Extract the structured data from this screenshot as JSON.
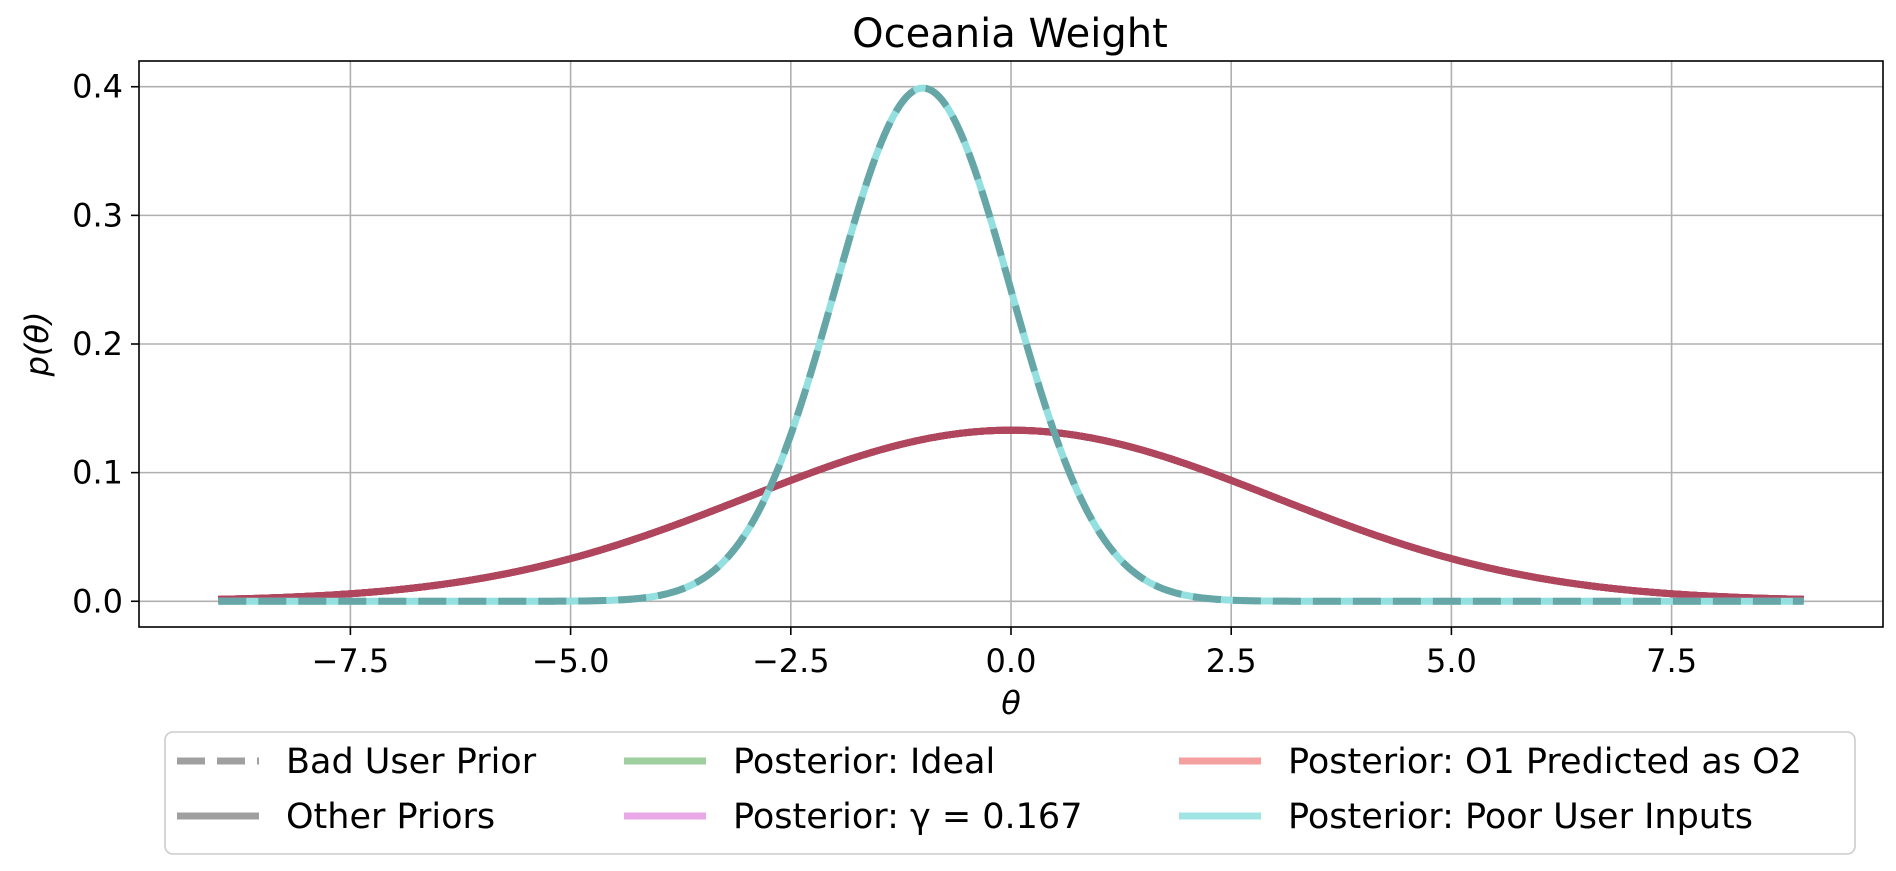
{
  "chart_data": {
    "type": "line",
    "title": "Oceania Weight",
    "xlabel": "θ",
    "ylabel": "p(θ)",
    "xlim": [
      -9.9,
      9.9
    ],
    "ylim": [
      -0.02,
      0.42
    ],
    "grid": true,
    "x_ticks": [
      -7.5,
      -5.0,
      -2.5,
      0.0,
      2.5,
      5.0,
      7.5
    ],
    "x_tick_labels": [
      "−7.5",
      "−5.0",
      "−2.5",
      "0.0",
      "2.5",
      "5.0",
      "7.5"
    ],
    "y_ticks": [
      0.0,
      0.1,
      0.2,
      0.3,
      0.4
    ],
    "y_tick_labels": [
      "0.0",
      "0.1",
      "0.2",
      "0.3",
      "0.4"
    ],
    "x_range": [
      -9,
      9
    ],
    "series": [
      {
        "name": "Bad User Prior",
        "distribution": "normal",
        "mean": -1.0,
        "std": 1.0,
        "color": "#808080",
        "style": "dashed"
      },
      {
        "name": "Other Priors",
        "distribution": "normal",
        "mean": 0.0,
        "std": 3.0,
        "color": "#808080",
        "style": "solid"
      },
      {
        "name": "Posterior: Ideal",
        "distribution": "normal",
        "mean": 0.0,
        "std": 3.0,
        "color": "#7fbf7f",
        "style": "solid"
      },
      {
        "name": "Posterior: γ = 0.167",
        "distribution": "normal",
        "mean": 0.0,
        "std": 3.0,
        "color": "#df7fdf",
        "style": "solid"
      },
      {
        "name": "Posterior: O1 Predicted as O2",
        "distribution": "normal",
        "mean": 0.0,
        "std": 3.0,
        "color": "#f08080",
        "style": "solid"
      },
      {
        "name": "Posterior: Poor User Inputs",
        "distribution": "normal",
        "mean": -1.0,
        "std": 1.0,
        "color": "#80dada",
        "style": "solid"
      }
    ],
    "legend": {
      "placement": "below",
      "columns": 3,
      "entries": [
        {
          "label": "Bad User Prior",
          "color": "#a0a0a0",
          "style": "dashed"
        },
        {
          "label": "Other Priors",
          "color": "#a0a0a0",
          "style": "solid"
        },
        {
          "label": "Posterior: Ideal",
          "color": "#9fcf9f",
          "style": "solid"
        },
        {
          "label": "Posterior: γ = 0.167",
          "color": "#e8a8e8",
          "style": "solid"
        },
        {
          "label": "Posterior: O1 Predicted as O2",
          "color": "#f5a0a0",
          "style": "solid"
        },
        {
          "label": "Posterior: Poor User Inputs",
          "color": "#a0e4e4",
          "style": "solid"
        }
      ]
    },
    "rendered_colors": {
      "wide_curve": "#b0465e",
      "narrow_curve_base": "#94e0e0",
      "narrow_curve_dash": "#66a6a6"
    }
  }
}
